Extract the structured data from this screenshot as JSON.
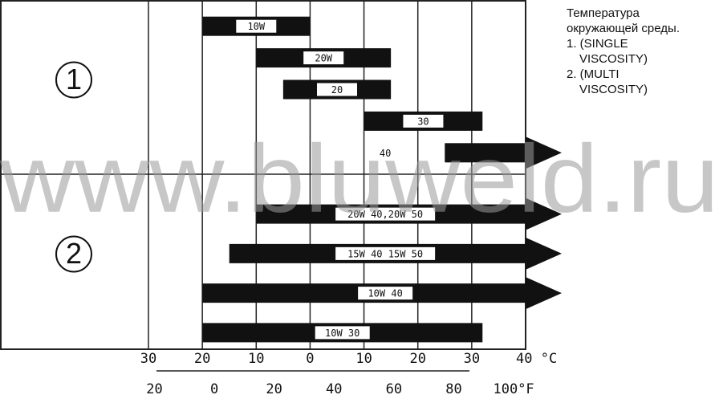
{
  "chart_data": {
    "type": "range",
    "xlim": [
      -30,
      40
    ],
    "xticks": [
      {
        "value": -30,
        "label": "30"
      },
      {
        "value": -20,
        "label": "20"
      },
      {
        "value": -10,
        "label": "10"
      },
      0,
      10,
      20,
      30,
      {
        "value": 40,
        "label": "40 °C"
      }
    ],
    "x2lim": [
      -22,
      104
    ],
    "x2ticks": [
      {
        "value": -20,
        "label": "20"
      },
      0,
      20,
      40,
      60,
      80,
      {
        "value": 100,
        "label": "100°F"
      }
    ],
    "color": "#111111",
    "groups": [
      {
        "label": "1",
        "series": [
          {
            "name": "10W",
            "values": [
              -20,
              0
            ]
          },
          {
            "name": "20W",
            "values": [
              -10,
              15
            ]
          },
          {
            "name": "20",
            "values": [
              -5,
              15
            ]
          },
          {
            "name": "30",
            "values": [
              10,
              32
            ]
          },
          {
            "name": "40",
            "values": [
              25,
              40
            ]
          }
        ]
      },
      {
        "label": "2",
        "series": [
          {
            "name": "20W 40,20W 50",
            "values": [
              -10,
              40
            ]
          },
          {
            "name": "15W 40 15W 50",
            "values": [
              -15,
              40
            ]
          },
          {
            "name": "10W 40",
            "values": [
              -20,
              40
            ]
          },
          {
            "name": "10W 30",
            "values": [
              -20,
              32
            ]
          }
        ]
      }
    ]
  },
  "notes": {
    "title_line1": "Температура",
    "title_line2": "окружающей среды.",
    "item1_line1": "1. (SINGLE",
    "item1_line2": "VISCOSITY)",
    "item2_line1": "2. (MULTI",
    "item2_line2": "VISCOSITY)"
  },
  "watermark": "www.bluweld.ru"
}
